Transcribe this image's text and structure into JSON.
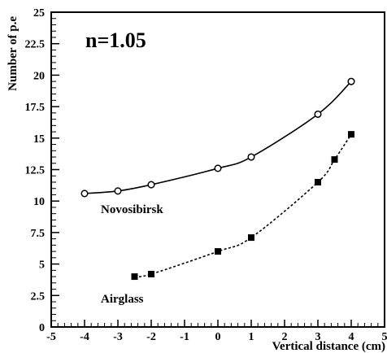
{
  "chart_data": {
    "type": "line",
    "xlabel": "Vertical distance (cm)",
    "ylabel": "Number of p.e",
    "xlim": [
      -5,
      5
    ],
    "ylim": [
      0,
      25
    ],
    "x_ticks": [
      "-5",
      "-4",
      "-3",
      "-2",
      "-1",
      "0",
      "1",
      "2",
      "3",
      "4",
      "5"
    ],
    "y_ticks": [
      "0",
      "2.5",
      "5",
      "7.5",
      "10",
      "12.5",
      "15",
      "17.5",
      "20",
      "22.5",
      "25"
    ],
    "grid": false,
    "annotations": {
      "n_label": "n=1.05",
      "novosibirsk_label": "Novosibirsk",
      "airglass_label": "Airglass"
    },
    "series": [
      {
        "name": "Novosibirsk",
        "marker": "open-circle",
        "line_style": "solid",
        "x": [
          -4,
          -3,
          -2,
          0,
          1,
          3,
          4
        ],
        "y": [
          10.6,
          10.8,
          11.3,
          12.6,
          13.5,
          16.9,
          19.5
        ]
      },
      {
        "name": "Airglass",
        "marker": "filled-square",
        "line_style": "dotted",
        "x": [
          -2.5,
          -2,
          0,
          1,
          3,
          3.5,
          4
        ],
        "y": [
          4.0,
          4.2,
          6.0,
          7.1,
          11.5,
          13.3,
          15.3
        ]
      }
    ]
  }
}
